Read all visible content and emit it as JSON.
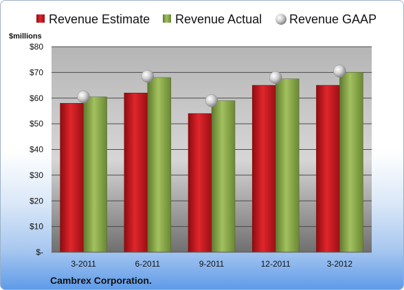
{
  "chart_data": {
    "type": "bar",
    "title": "",
    "unit_label": "$millions",
    "company": "Cambrex Corporation.",
    "categories": [
      "3-2011",
      "6-2011",
      "9-2011",
      "12-2011",
      "3-2012"
    ],
    "series": [
      {
        "name": "Revenue Estimate",
        "type": "bar",
        "color": "#c8161d",
        "values": [
          58,
          62,
          54,
          65,
          65
        ]
      },
      {
        "name": "Revenue Actual",
        "type": "bar",
        "color": "#8cab4d",
        "values": [
          60.5,
          68,
          59,
          67.5,
          70
        ]
      },
      {
        "name": "Revenue GAAP",
        "type": "marker",
        "color": "#c0c0c0",
        "values": [
          60.5,
          68.5,
          59,
          68,
          70.5
        ]
      }
    ],
    "ylim": [
      0,
      80
    ],
    "yticks": [
      0,
      10,
      20,
      30,
      40,
      50,
      60,
      70,
      80
    ],
    "ytick_labels": [
      "$-",
      "$10",
      "$20",
      "$30",
      "$40",
      "$50",
      "$60",
      "$70",
      "$80"
    ],
    "grid": true,
    "legend_position": "top"
  }
}
